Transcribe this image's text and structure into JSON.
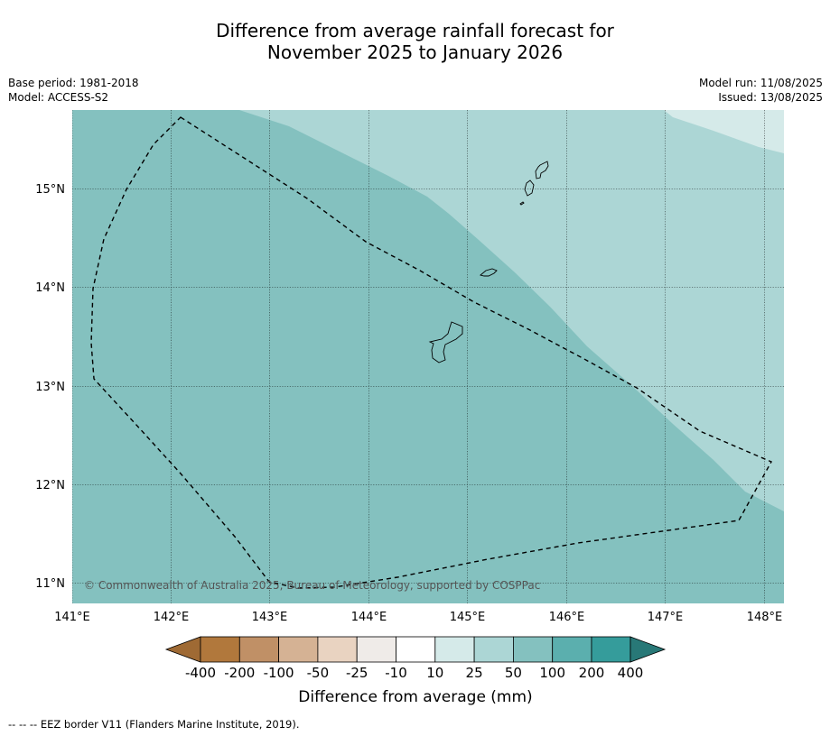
{
  "title": {
    "line1": "Difference from average rainfall forecast for",
    "line2": "November 2025 to January 2026"
  },
  "meta_left": {
    "base_period": "Base period: 1981-2018",
    "model": "Model: ACCESS-S2"
  },
  "meta_right": {
    "model_run": "Model run: 11/08/2025",
    "issued": "Issued: 13/08/2025"
  },
  "map": {
    "lon_labels": [
      "141°E",
      "142°E",
      "143°E",
      "144°E",
      "145°E",
      "146°E",
      "147°E",
      "148°E"
    ],
    "lat_labels": [
      "15°N",
      "14°N",
      "13°N",
      "12°N",
      "11°N"
    ],
    "copyright": "© Commonwealth of Australia 2025, Bureau of Meteorology, supported by COSPPac",
    "regions": [
      {
        "category": "50 to 100 mm",
        "color": "#84c1bf"
      },
      {
        "category": "25 to 50 mm",
        "color": "#acd6d5"
      },
      {
        "category": "10 to 25 mm",
        "color": "#d5eae9"
      }
    ],
    "features": [
      "EEZ border",
      "Guam",
      "Rota",
      "Aguijan",
      "Tinian",
      "Saipan"
    ]
  },
  "colorbar": {
    "colors": [
      "#9f6a34",
      "#b1783c",
      "#c09066",
      "#d5b294",
      "#e9d3c1",
      "#efebe8",
      "#ffffff",
      "#d5eae9",
      "#acd6d5",
      "#84c1bf",
      "#5bafae",
      "#359c9b",
      "#287877"
    ],
    "tick_labels": [
      "-400",
      "-200",
      "-100",
      "-50",
      "-25",
      "-10",
      "10",
      "25",
      "50",
      "100",
      "200",
      "400"
    ],
    "label": "Difference from average (mm)"
  },
  "footer": "--  --  -- EEZ border V11 (Flanders Marine Institute, 2019)."
}
